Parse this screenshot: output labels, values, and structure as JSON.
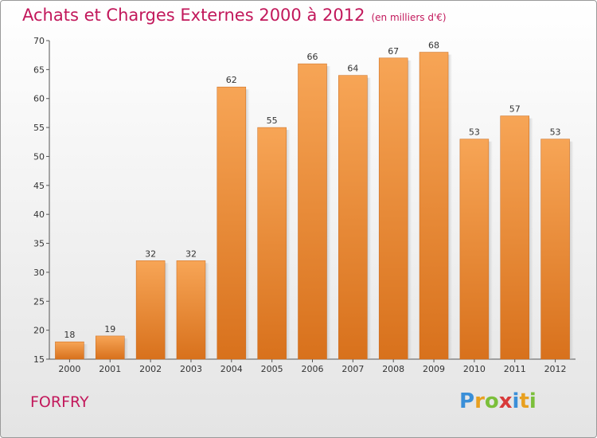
{
  "chart_data": {
    "type": "bar",
    "title": "Achats et Charges Externes 2000 à 2012",
    "subtitle": "(en milliers d'€)",
    "categories": [
      "2000",
      "2001",
      "2002",
      "2003",
      "2004",
      "2005",
      "2006",
      "2007",
      "2008",
      "2009",
      "2010",
      "2011",
      "2012"
    ],
    "values": [
      18,
      19,
      32,
      32,
      62,
      55,
      66,
      64,
      67,
      68,
      53,
      57,
      53
    ],
    "xlabel": "",
    "ylabel": "",
    "ylim": [
      15,
      70
    ],
    "yticks": [
      15,
      20,
      25,
      30,
      35,
      40,
      45,
      50,
      55,
      60,
      65,
      70
    ],
    "grid": false,
    "bar_color": "#f0943a"
  },
  "commune": "FORFRY",
  "logo": {
    "letters": [
      "P",
      "r",
      "o",
      "x",
      "i",
      "t",
      "i"
    ],
    "colors": [
      "#3a8fd8",
      "#e8a020",
      "#7bbf3a",
      "#d83a3a",
      "#3a8fd8",
      "#e8a020",
      "#7bbf3a"
    ]
  }
}
